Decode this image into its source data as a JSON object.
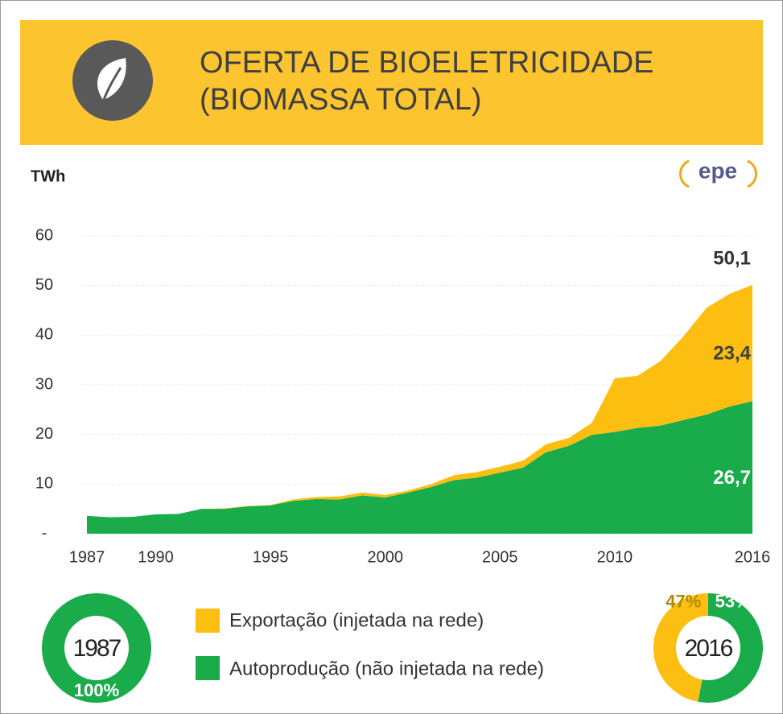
{
  "chart_data": [
    {
      "type": "area",
      "stacked": true,
      "title": [
        "OFERTA DE BIOELETRICIDADE",
        "(BIOMASSA TOTAL)"
      ],
      "logo": "epe",
      "y_label": "TWh",
      "x": [
        1987,
        1988,
        1989,
        1990,
        1991,
        1992,
        1993,
        1994,
        1995,
        1996,
        1997,
        1998,
        1999,
        2000,
        2001,
        2002,
        2003,
        2004,
        2005,
        2006,
        2007,
        2008,
        2009,
        2010,
        2011,
        2012,
        2013,
        2014,
        2015,
        2016
      ],
      "xlim": [
        1987,
        2016
      ],
      "xticks": [
        1987,
        1990,
        1995,
        2000,
        2005,
        2010,
        2016
      ],
      "ylim": [
        0,
        60
      ],
      "yticks": [
        {
          "value": 0,
          "label": "-"
        },
        10,
        20,
        30,
        40,
        50,
        60
      ],
      "grid": true,
      "series": [
        {
          "name": "Autoprodução (não injetada na rede)",
          "color": "#1aab4b",
          "values": [
            3.6,
            3.3,
            3.4,
            3.9,
            4.0,
            5.0,
            5.0,
            5.5,
            5.7,
            6.6,
            7.0,
            6.9,
            7.7,
            7.3,
            8.3,
            9.4,
            10.8,
            11.3,
            12.3,
            13.3,
            16.4,
            17.7,
            19.9,
            20.5,
            21.3,
            21.8,
            22.9,
            24.0,
            25.6,
            26.7
          ],
          "value_labels": [
            null,
            null,
            null,
            null,
            null,
            null,
            null,
            null,
            null,
            null,
            null,
            null,
            null,
            null,
            null,
            null,
            null,
            null,
            null,
            null,
            null,
            null,
            null,
            null,
            null,
            null,
            null,
            null,
            null,
            "26,7"
          ]
        },
        {
          "name": "Exportação (injetada na rede)",
          "color": "#fdbe12",
          "values": [
            0,
            0,
            0,
            0,
            0,
            0,
            0.1,
            0.1,
            0.1,
            0.3,
            0.4,
            0.6,
            0.6,
            0.5,
            0.4,
            0.6,
            1.0,
            1.1,
            1.2,
            1.4,
            1.6,
            1.6,
            2.4,
            10.8,
            10.5,
            13.0,
            16.9,
            21.5,
            22.7,
            23.4
          ],
          "value_labels": [
            null,
            null,
            null,
            null,
            null,
            null,
            null,
            null,
            null,
            null,
            null,
            null,
            null,
            null,
            null,
            null,
            null,
            null,
            null,
            null,
            null,
            null,
            null,
            null,
            null,
            null,
            null,
            null,
            null,
            "23,4"
          ]
        }
      ],
      "total": {
        "value": 50.1,
        "label": "50,1"
      }
    },
    {
      "type": "donut",
      "center_label": "1987",
      "values": [
        100
      ],
      "colors": [
        "#1aab4b"
      ],
      "value_labels": [
        "100%"
      ]
    },
    {
      "type": "donut",
      "center_label": "2016",
      "values": [
        53,
        47
      ],
      "colors": [
        "#1aab4b",
        "#fdbe12"
      ],
      "value_labels": [
        "53%",
        "47%"
      ]
    }
  ]
}
